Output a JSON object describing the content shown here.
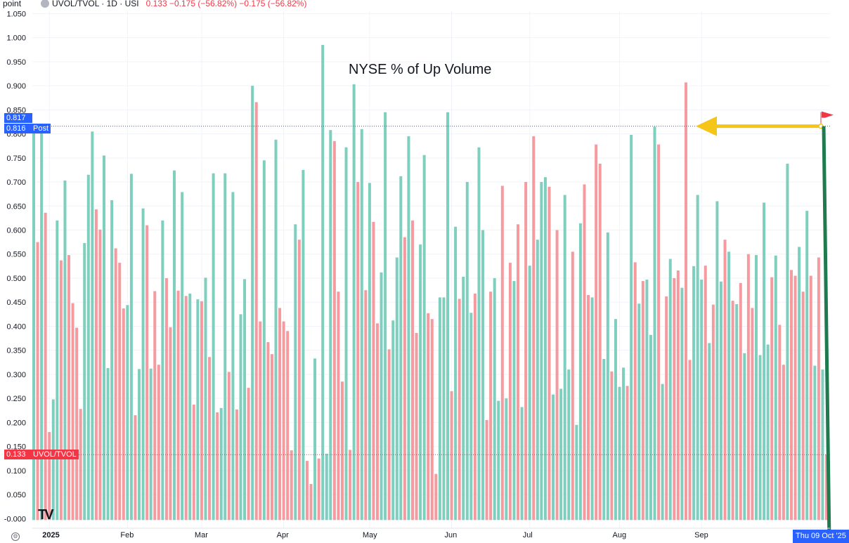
{
  "header": {
    "unit": "point",
    "symbol": "UVOL/TVOL · 1D · USI",
    "change": "0.133 −0.175 (−56.82%) −0.175 (−56.82%)"
  },
  "annotation": {
    "title": "NYSE % of Up Volume"
  },
  "badges": {
    "high_value": "0.817",
    "post_value": "0.816",
    "post_label": "Post",
    "last_value": "0.133",
    "last_label": "UVOL/TVOL",
    "date": "Thu 09 Oct '25"
  },
  "colors": {
    "up": "#7fcfbe",
    "down": "#f59a9f",
    "accent": "#2962ff",
    "last": "#f23645",
    "arrow": "#f5c518",
    "line": "#1f7a4f"
  },
  "logo": "TV",
  "chart_data": {
    "type": "bar",
    "title": "NYSE % of Up Volume",
    "ylabel": "point",
    "ylim": [
      -0.02,
      1.055
    ],
    "y_ticks": [
      "-0.000",
      "0.050",
      "0.100",
      "0.150",
      "0.200",
      "0.250",
      "0.300",
      "0.350",
      "0.400",
      "0.450",
      "0.500",
      "0.550",
      "0.600",
      "0.650",
      "0.700",
      "0.750",
      "0.800",
      "0.850",
      "0.900",
      "0.950",
      "1.000",
      "1.050"
    ],
    "x_ticks": [
      {
        "label": "2025",
        "index": 4,
        "bold": true
      },
      {
        "label": "Feb",
        "index": 24
      },
      {
        "label": "Mar",
        "index": 43
      },
      {
        "label": "Apr",
        "index": 64
      },
      {
        "label": "May",
        "index": 86
      },
      {
        "label": "Jun",
        "index": 107
      },
      {
        "label": "Jul",
        "index": 127
      },
      {
        "label": "Aug",
        "index": 150
      },
      {
        "label": "Sep",
        "index": 171
      }
    ],
    "reference_line": 0.816,
    "values": [
      0.81,
      0.575,
      0.81,
      0.636,
      0.18,
      0.248,
      0.62,
      0.537,
      0.703,
      0.548,
      0.448,
      0.397,
      0.228,
      0.573,
      0.715,
      0.805,
      0.643,
      0.601,
      0.755,
      0.313,
      0.662,
      0.562,
      0.532,
      0.437,
      0.444,
      0.717,
      0.215,
      0.311,
      0.645,
      0.61,
      0.312,
      0.473,
      0.32,
      0.62,
      0.5,
      0.398,
      0.724,
      0.474,
      0.679,
      0.463,
      0.468,
      0.237,
      0.456,
      0.452,
      0.501,
      0.336,
      0.718,
      0.221,
      0.23,
      0.718,
      0.305,
      0.679,
      0.227,
      0.425,
      0.498,
      0.272,
      0.9,
      0.866,
      0.41,
      0.745,
      0.367,
      0.342,
      0.788,
      0.438,
      0.41,
      0.39,
      0.142,
      0.612,
      0.58,
      0.725,
      0.12,
      0.072,
      0.333,
      0.125,
      0.985,
      0.135,
      0.808,
      0.785,
      0.472,
      0.285,
      0.772,
      0.143,
      0.903,
      0.7,
      0.81,
      0.475,
      0.698,
      0.617,
      0.406,
      0.512,
      0.845,
      0.352,
      0.412,
      0.543,
      0.712,
      0.585,
      0.795,
      0.62,
      0.386,
      0.57,
      0.756,
      0.427,
      0.415,
      0.093,
      0.46,
      0.46,
      0.845,
      0.265,
      0.607,
      0.457,
      0.503,
      0.7,
      0.428,
      0.468,
      0.772,
      0.6,
      0.205,
      0.472,
      0.5,
      0.245,
      0.692,
      0.25,
      0.532,
      0.494,
      0.612,
      0.232,
      0.7,
      0.526,
      0.795,
      0.58,
      0.7,
      0.71,
      0.69,
      0.258,
      0.6,
      0.27,
      0.673,
      0.31,
      0.555,
      0.195,
      0.614,
      0.695,
      0.465,
      0.46,
      0.778,
      0.738,
      0.332,
      0.595,
      0.306,
      0.415,
      0.274,
      0.314,
      0.276,
      0.798,
      0.533,
      0.447,
      0.494,
      0.497,
      0.382,
      0.815,
      0.778,
      0.28,
      0.462,
      0.54,
      0.5,
      0.516,
      0.48,
      0.907,
      0.33,
      0.525,
      0.673,
      0.497,
      0.526,
      0.365,
      0.445,
      0.66,
      0.493,
      0.58,
      0.555,
      0.453,
      0.446,
      0.49,
      0.344,
      0.55,
      0.438,
      0.548,
      0.34,
      0.657,
      0.362,
      0.502,
      0.547,
      0.403,
      0.32,
      0.738,
      0.517,
      0.505,
      0.565,
      0.472,
      0.64,
      0.505,
      0.318,
      0.543,
      0.31,
      0.133
    ],
    "colors_by_bar": [
      "u",
      "d",
      "u",
      "d",
      "d",
      "u",
      "u",
      "d",
      "u",
      "d",
      "d",
      "d",
      "d",
      "u",
      "u",
      "u",
      "d",
      "d",
      "u",
      "u",
      "u",
      "d",
      "d",
      "d",
      "u",
      "u",
      "d",
      "u",
      "u",
      "d",
      "u",
      "d",
      "d",
      "u",
      "d",
      "d",
      "u",
      "d",
      "u",
      "d",
      "u",
      "d",
      "u",
      "d",
      "u",
      "d",
      "u",
      "d",
      "u",
      "u",
      "d",
      "u",
      "d",
      "u",
      "u",
      "d",
      "u",
      "d",
      "d",
      "u",
      "d",
      "d",
      "u",
      "d",
      "d",
      "d",
      "d",
      "u",
      "d",
      "u",
      "d",
      "d",
      "u",
      "d",
      "u",
      "u",
      "u",
      "d",
      "d",
      "d",
      "u",
      "d",
      "u",
      "d",
      "u",
      "d",
      "u",
      "d",
      "d",
      "u",
      "u",
      "d",
      "u",
      "u",
      "u",
      "d",
      "u",
      "d",
      "d",
      "u",
      "u",
      "d",
      "d",
      "d",
      "u",
      "u",
      "u",
      "d",
      "u",
      "d",
      "u",
      "u",
      "u",
      "d",
      "u",
      "u",
      "d",
      "d",
      "u",
      "u",
      "d",
      "u",
      "d",
      "u",
      "d",
      "u",
      "d",
      "u",
      "d",
      "u",
      "u",
      "u",
      "d",
      "u",
      "d",
      "u",
      "u",
      "u",
      "d",
      "u",
      "u",
      "d",
      "d",
      "u",
      "d",
      "d",
      "u",
      "u",
      "d",
      "u",
      "u",
      "u",
      "d",
      "u",
      "d",
      "u",
      "d",
      "u",
      "u",
      "u",
      "d",
      "u",
      "d",
      "u",
      "d",
      "d",
      "u",
      "d",
      "d",
      "u",
      "u",
      "u",
      "d",
      "u",
      "d",
      "u",
      "u",
      "d",
      "u",
      "d",
      "u",
      "d",
      "u",
      "d",
      "d",
      "u",
      "u",
      "u",
      "u",
      "d",
      "u",
      "d",
      "d",
      "u",
      "d",
      "d",
      "u",
      "d",
      "u",
      "d",
      "u",
      "d",
      "u",
      "d",
      "u",
      "d",
      "u",
      "u",
      "d",
      "d"
    ]
  }
}
